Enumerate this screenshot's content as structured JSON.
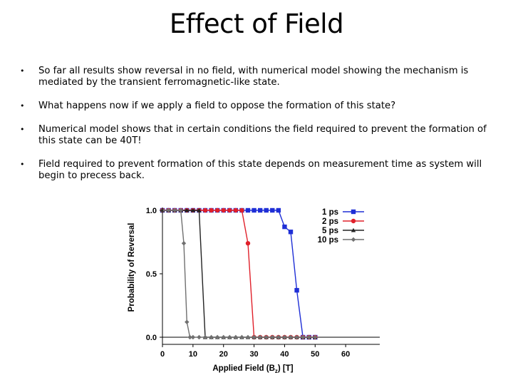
{
  "slide": {
    "title": "Effect of Field",
    "bullets": [
      "So far all results show reversal in no field, with numerical model showing the mechanism is mediated by the transient ferromagnetic-like state.",
      "What happens now if we apply a field to oppose the formation of this state?",
      "Numerical model shows that in certain conditions the field required to prevent the formation of this state can be 40T!",
      "Field required to prevent formation of this state depends on measurement time as system will begin to precess back."
    ],
    "bullet_symbol": "•"
  },
  "chart_data": {
    "type": "line",
    "title": "",
    "xlabel": "Applied Field (B",
    "xlabel_sub": "z",
    "xlabel_tail": ") [T]",
    "ylabel": "Probability of Reversal",
    "xlim": [
      0,
      70
    ],
    "ylim": [
      0,
      1
    ],
    "x_ticks": [
      0,
      10,
      20,
      30,
      40,
      50,
      60
    ],
    "x_tick_labels": [
      "0",
      "10",
      "20",
      "30",
      "40",
      "50",
      "60"
    ],
    "y_ticks": [
      0,
      0.5,
      1
    ],
    "y_tick_labels": [
      "0.0",
      "0.5",
      "1.0"
    ],
    "legend_position": "top-right",
    "series": [
      {
        "name": "1 ps",
        "color": "#1f2fd6",
        "marker": "square",
        "x": [
          0,
          2,
          4,
          6,
          8,
          10,
          12,
          14,
          16,
          18,
          20,
          22,
          24,
          26,
          28,
          30,
          32,
          34,
          36,
          38,
          40,
          42,
          44,
          46,
          48,
          50
        ],
        "y": [
          1,
          1,
          1,
          1,
          1,
          1,
          1,
          1,
          1,
          1,
          1,
          1,
          1,
          1,
          1,
          1,
          1,
          1,
          1,
          1,
          0.87,
          0.83,
          0.37,
          0,
          0,
          0
        ]
      },
      {
        "name": "2 ps",
        "color": "#e0202a",
        "marker": "circle",
        "x": [
          0,
          2,
          4,
          6,
          8,
          10,
          12,
          14,
          16,
          18,
          20,
          22,
          24,
          26,
          28,
          30,
          32,
          34,
          36,
          38,
          40,
          42,
          44,
          46,
          48,
          50
        ],
        "y": [
          1,
          1,
          1,
          1,
          1,
          1,
          1,
          1,
          1,
          1,
          1,
          1,
          1,
          1,
          0.74,
          0,
          0,
          0,
          0,
          0,
          0,
          0,
          0,
          0,
          0,
          0
        ]
      },
      {
        "name": "5 ps",
        "color": "#222222",
        "marker": "triangle",
        "x": [
          0,
          2,
          4,
          6,
          8,
          10,
          12,
          14,
          16,
          18,
          20,
          22,
          24,
          26,
          28,
          30,
          32,
          34,
          36,
          38,
          40,
          42,
          44,
          46,
          48,
          50
        ],
        "y": [
          1,
          1,
          1,
          1,
          1,
          1,
          1,
          0,
          0,
          0,
          0,
          0,
          0,
          0,
          0,
          0,
          0,
          0,
          0,
          0,
          0,
          0,
          0,
          0,
          0,
          0
        ]
      },
      {
        "name": "10 ps",
        "color": "#707070",
        "marker": "diamond",
        "x": [
          0,
          2,
          4,
          6,
          7,
          8,
          9,
          10,
          12,
          14,
          16,
          18,
          20,
          22,
          24,
          26,
          28,
          30,
          32,
          34,
          36,
          38,
          40,
          42,
          44,
          46,
          48,
          50
        ],
        "y": [
          1,
          1,
          1,
          1,
          0.74,
          0.12,
          0,
          0,
          0,
          0,
          0,
          0,
          0,
          0,
          0,
          0,
          0,
          0,
          0,
          0,
          0,
          0,
          0,
          0,
          0,
          0,
          0,
          0
        ]
      }
    ]
  }
}
